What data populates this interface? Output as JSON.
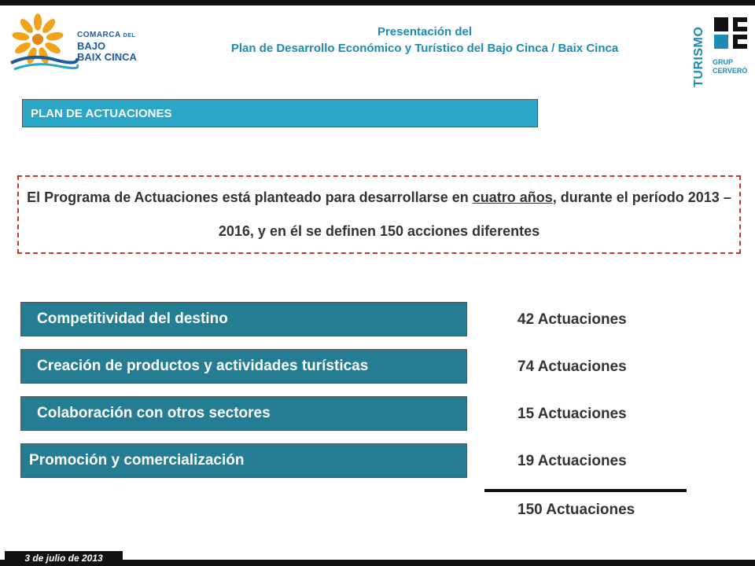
{
  "header": {
    "title_line1": "Presentación del",
    "title_line2": "Plan de Desarrollo Económico y Turístico del Bajo Cinca / Baix Cinca"
  },
  "logo_left": {
    "line1": "COMARCA",
    "line1_small": "DEL",
    "line2": "BAJO",
    "line3a": "BAIX",
    "line3b": "CINCA"
  },
  "logo_right": {
    "vertical": "TURISMO",
    "grup_line1": "GRUP",
    "grup_line2": "CERVERÓ"
  },
  "section": {
    "title": "PLAN DE ACTUACIONES"
  },
  "intro": {
    "text_before": "El Programa de Actuaciones está planteado para desarrollarse en ",
    "underlined": "cuatro años",
    "text_after": ", durante el período 2013 – 2016, y en él se definen 150 acciones diferentes"
  },
  "actions": [
    {
      "label": "Competitividad del destino",
      "count": "42 Actuaciones"
    },
    {
      "label": "Creación de productos y actividades turísticas",
      "count": "74 Actuaciones"
    },
    {
      "label": "Colaboración con otros sectores",
      "count": "15 Actuaciones"
    },
    {
      "label": "Promoción y comercialización",
      "count": "19 Actuaciones"
    }
  ],
  "total": "150 Actuaciones",
  "footer": {
    "date": "3 de julio de 2013"
  },
  "colors": {
    "accent": "#2aa6c6",
    "action_box": "#247d93",
    "title_blue": "#1e8bb5",
    "dashed_border": "#c0392b"
  }
}
